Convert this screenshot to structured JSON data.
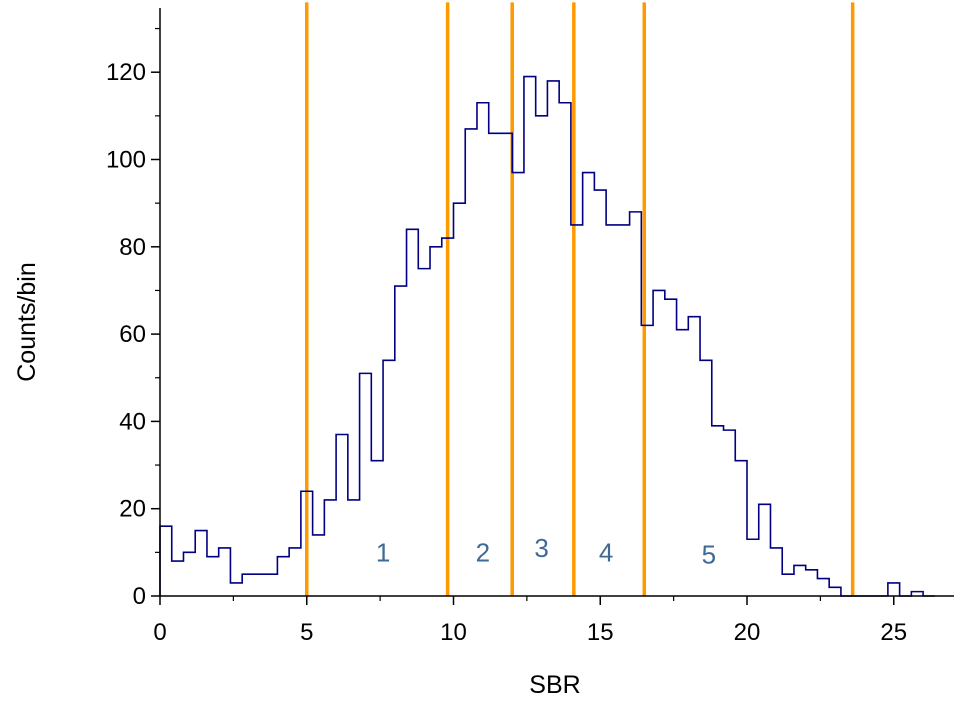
{
  "chart_data": {
    "type": "histogram",
    "xlabel": "SBR",
    "ylabel": "Counts/bin",
    "xlim": [
      0,
      26.5
    ],
    "ylim": [
      0,
      136
    ],
    "grid": false,
    "x_ticks": [
      0,
      5,
      10,
      15,
      20,
      25
    ],
    "x_tick_labels": [
      "0",
      "5",
      "10",
      "15",
      "20",
      "25"
    ],
    "y_ticks": [
      0,
      20,
      40,
      60,
      80,
      100,
      120
    ],
    "y_tick_labels": [
      "0",
      "20",
      "40",
      "60",
      "80",
      "100",
      "120"
    ],
    "bin_width": 0.4,
    "histogram_color": "#000080",
    "series": [
      {
        "bin_left_edges": [
          0.0,
          0.4,
          0.8,
          1.2,
          1.6,
          2.0,
          2.4,
          2.8,
          3.2,
          3.6,
          4.0,
          4.4,
          4.8,
          5.2,
          5.6,
          6.0,
          6.4,
          6.8,
          7.2,
          7.6,
          8.0,
          8.4,
          8.8,
          9.2,
          9.6,
          10.0,
          10.4,
          10.8,
          11.2,
          11.6,
          12.0,
          12.4,
          12.8,
          13.2,
          13.6,
          14.0,
          14.4,
          14.8,
          15.2,
          15.6,
          16.0,
          16.4,
          16.8,
          17.2,
          17.6,
          18.0,
          18.4,
          18.8,
          19.2,
          19.6,
          20.0,
          20.4,
          20.8,
          21.2,
          21.6,
          22.0,
          22.4,
          22.8,
          23.2,
          23.6,
          24.0,
          24.4,
          24.8,
          25.2,
          25.6,
          26.0
        ],
        "values": [
          16,
          8,
          10,
          15,
          9,
          11,
          3,
          5,
          5,
          5,
          9,
          11,
          24,
          14,
          22,
          37,
          22,
          51,
          31,
          54,
          71,
          84,
          75,
          80,
          82,
          90,
          107,
          113,
          106,
          106,
          97,
          119,
          110,
          118,
          113,
          85,
          97,
          93,
          85,
          85,
          88,
          62,
          70,
          68,
          61,
          64,
          54,
          39,
          38,
          31,
          13,
          21,
          11,
          5,
          7,
          6,
          4,
          2,
          0,
          0,
          0,
          0,
          3,
          0,
          1,
          0
        ]
      }
    ],
    "vertical_lines": {
      "color": "#ff9900",
      "x": [
        5.0,
        9.8,
        12.0,
        14.1,
        16.5,
        23.6
      ]
    },
    "region_labels": [
      {
        "text": "1",
        "x": 7.6,
        "y": 10
      },
      {
        "text": "2",
        "x": 11.0,
        "y": 10
      },
      {
        "text": "3",
        "x": 13.0,
        "y": 11
      },
      {
        "text": "4",
        "x": 15.2,
        "y": 10
      },
      {
        "text": "5",
        "x": 18.7,
        "y": 9.5
      }
    ]
  }
}
